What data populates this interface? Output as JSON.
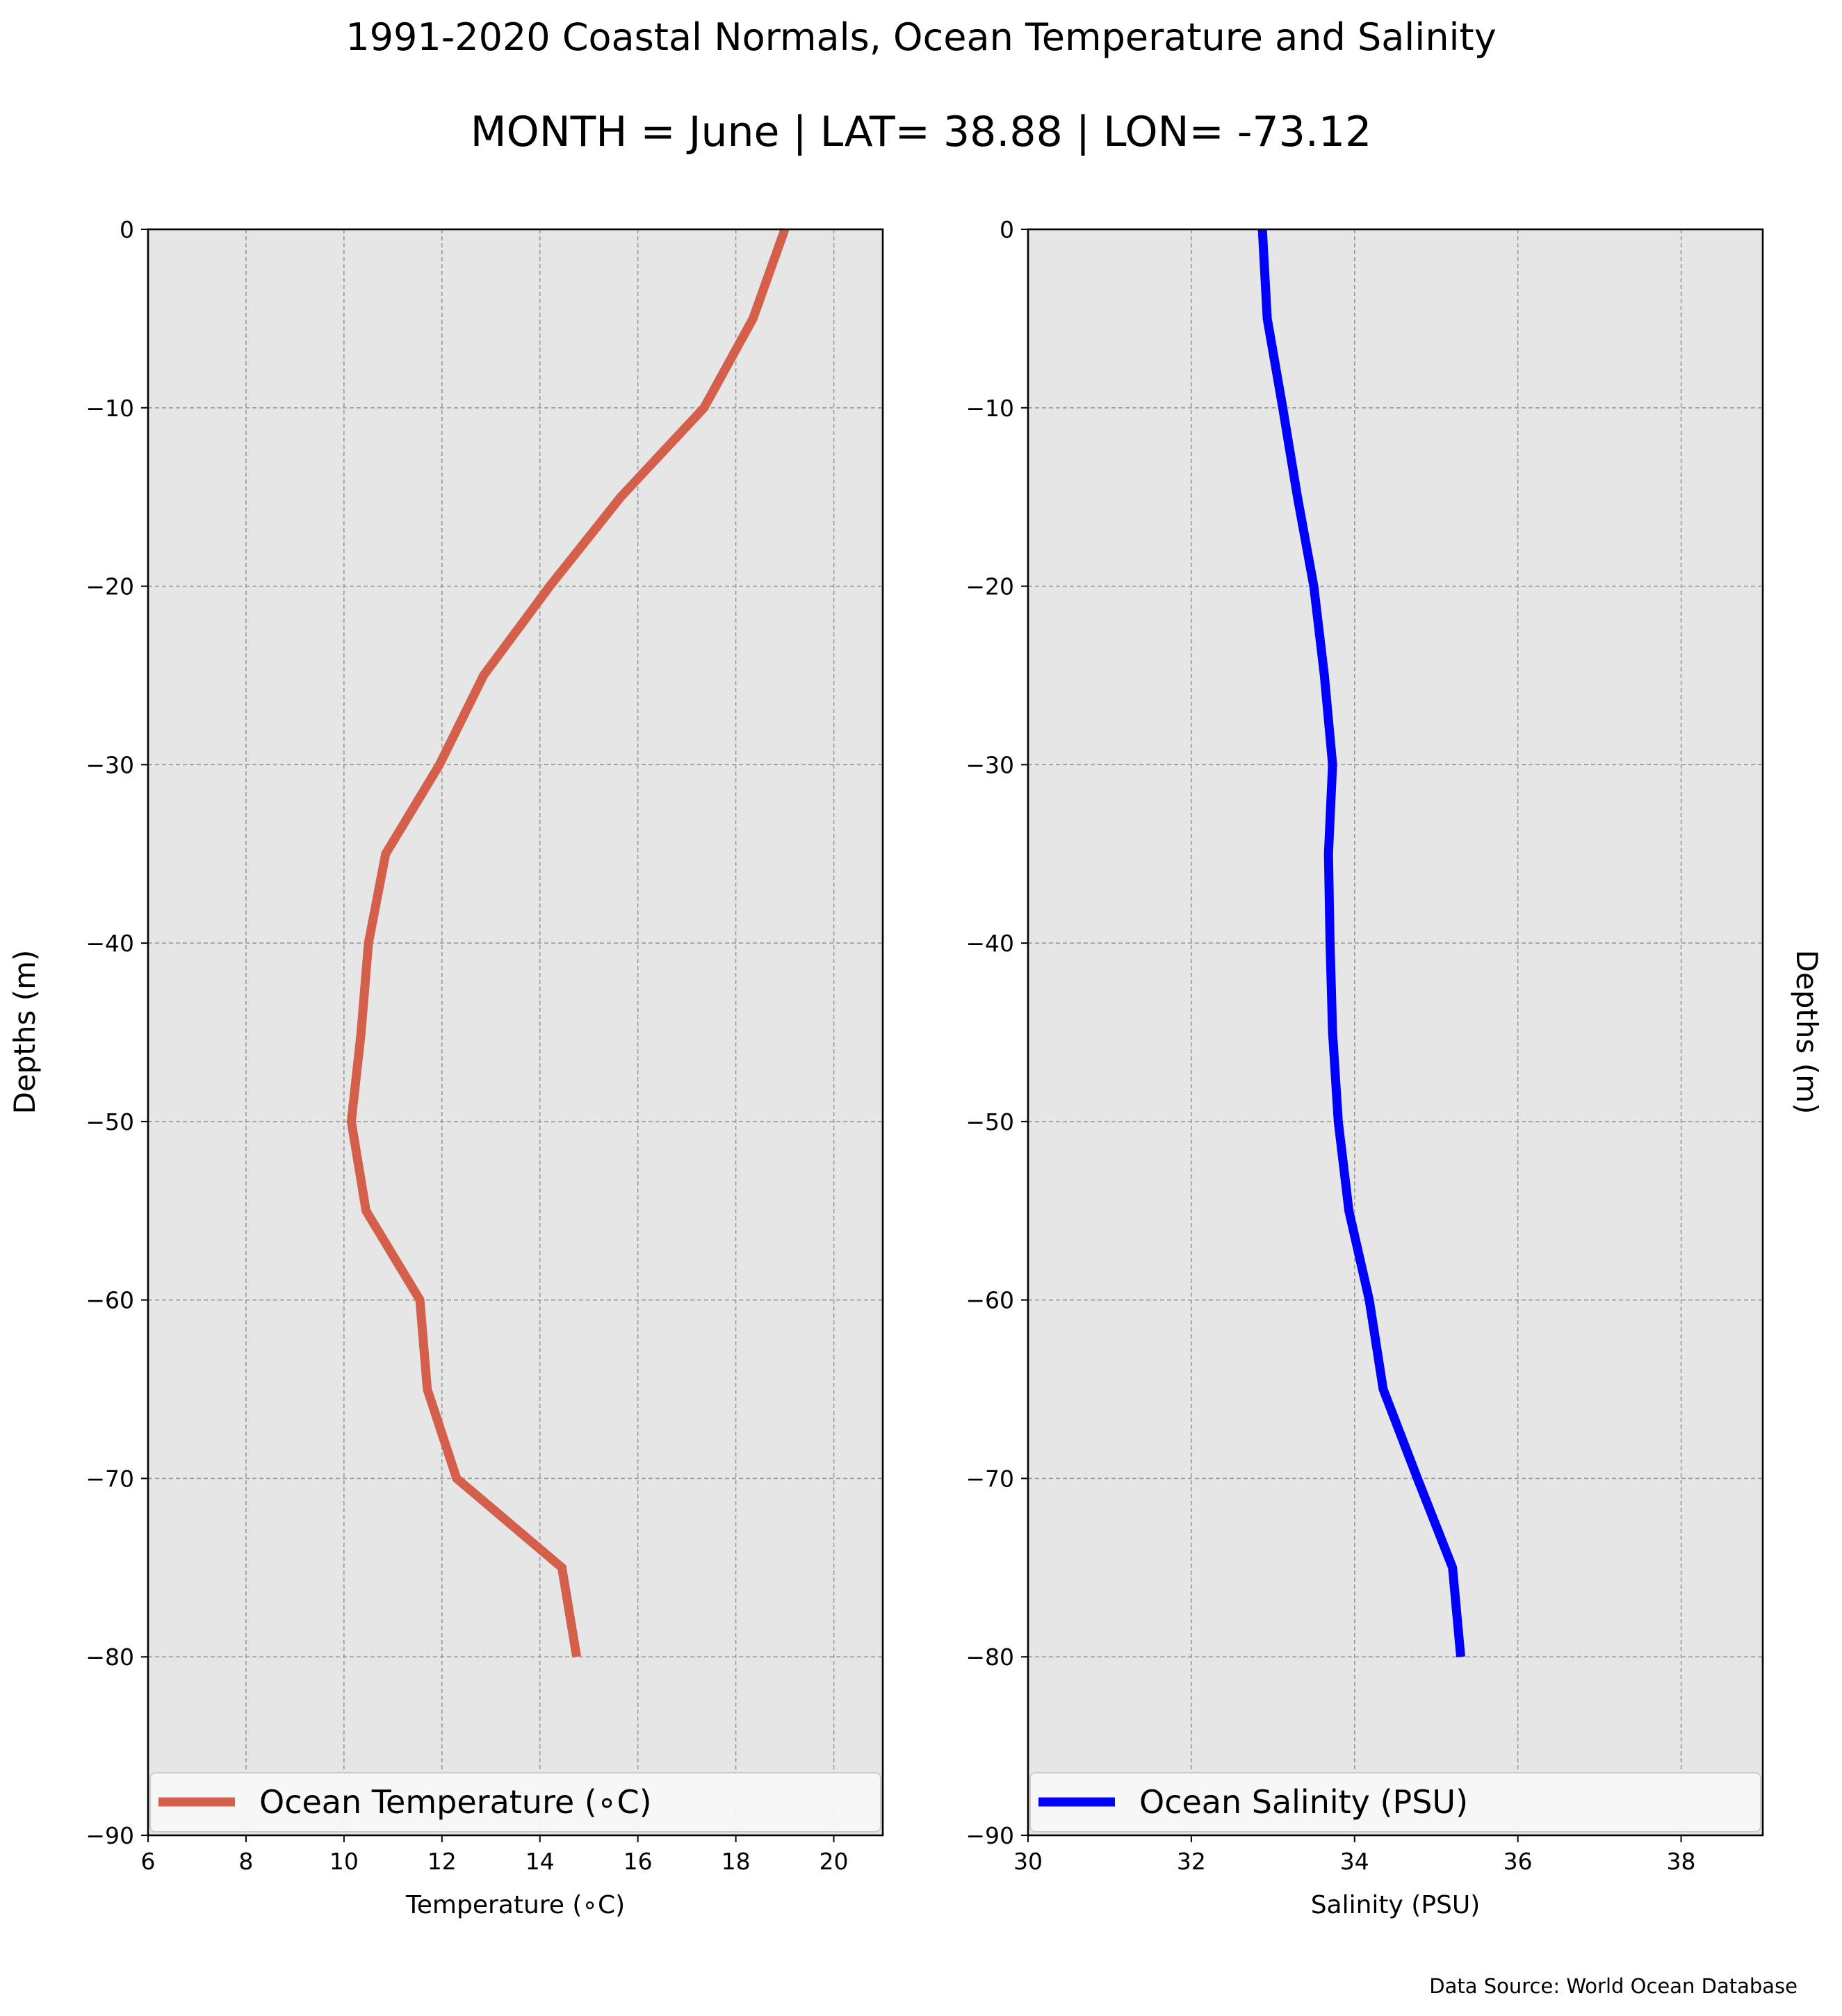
{
  "figure": {
    "title": "1991-2020 Coastal Normals, Ocean Temperature and Salinity",
    "subtitle": "MONTH = June | LAT= 38.88 | LON= -73.12",
    "source": "Data Source: World Ocean Database",
    "colors": {
      "background": "#ffffff",
      "plot_bg": "#e6e6e6",
      "grid": "#9a9a9a"
    }
  },
  "chart_data": [
    {
      "type": "line",
      "xlabel": "Temperature (∘C)",
      "ylabel": "Depths (m)",
      "xlim": [
        6,
        21
      ],
      "ylim": [
        -90,
        0
      ],
      "xticks": [
        6,
        8,
        10,
        12,
        14,
        16,
        18,
        20
      ],
      "yticks": [
        0,
        -10,
        -20,
        -30,
        -40,
        -50,
        -60,
        -70,
        -80,
        -90
      ],
      "yticklabels": [
        "0",
        "−10",
        "−20",
        "−30",
        "−40",
        "−50",
        "−60",
        "−70",
        "−80",
        "−90"
      ],
      "grid": true,
      "legend": "bottom",
      "series": [
        {
          "name": "Ocean Temperature (∘C)",
          "color": "#d45f4b",
          "x": [
            19.0,
            18.35,
            17.35,
            15.65,
            14.2,
            12.85,
            11.95,
            10.85,
            10.5,
            10.35,
            10.15,
            10.45,
            11.55,
            11.7,
            12.3,
            14.45,
            14.75
          ],
          "y": [
            0,
            -5,
            -10,
            -15,
            -20,
            -25,
            -30,
            -35,
            -40,
            -45,
            -50,
            -55,
            -60,
            -65,
            -70,
            -75,
            -80
          ]
        }
      ]
    },
    {
      "type": "line",
      "xlabel": "Salinity (PSU)",
      "ylabel": "Depths (m)",
      "xlim": [
        30,
        39
      ],
      "ylim": [
        -90,
        0
      ],
      "xticks": [
        30,
        32,
        34,
        36,
        38
      ],
      "yticks": [
        0,
        -10,
        -20,
        -30,
        -40,
        -50,
        -60,
        -70,
        -80,
        -90
      ],
      "yticklabels": [
        "0",
        "−10",
        "−20",
        "−30",
        "−40",
        "−50",
        "−60",
        "−70",
        "−80",
        "−90"
      ],
      "grid": true,
      "legend": "bottom",
      "series": [
        {
          "name": "Ocean Salinity (PSU)",
          "color": "#0000ff",
          "x": [
            32.87,
            32.93,
            33.12,
            33.3,
            33.5,
            33.63,
            33.73,
            33.68,
            33.7,
            33.73,
            33.8,
            33.93,
            34.18,
            34.35,
            34.77,
            35.2,
            35.3
          ],
          "y": [
            0,
            -5,
            -10,
            -15,
            -20,
            -25,
            -30,
            -35,
            -40,
            -45,
            -50,
            -55,
            -60,
            -65,
            -70,
            -75,
            -80
          ]
        }
      ]
    }
  ]
}
